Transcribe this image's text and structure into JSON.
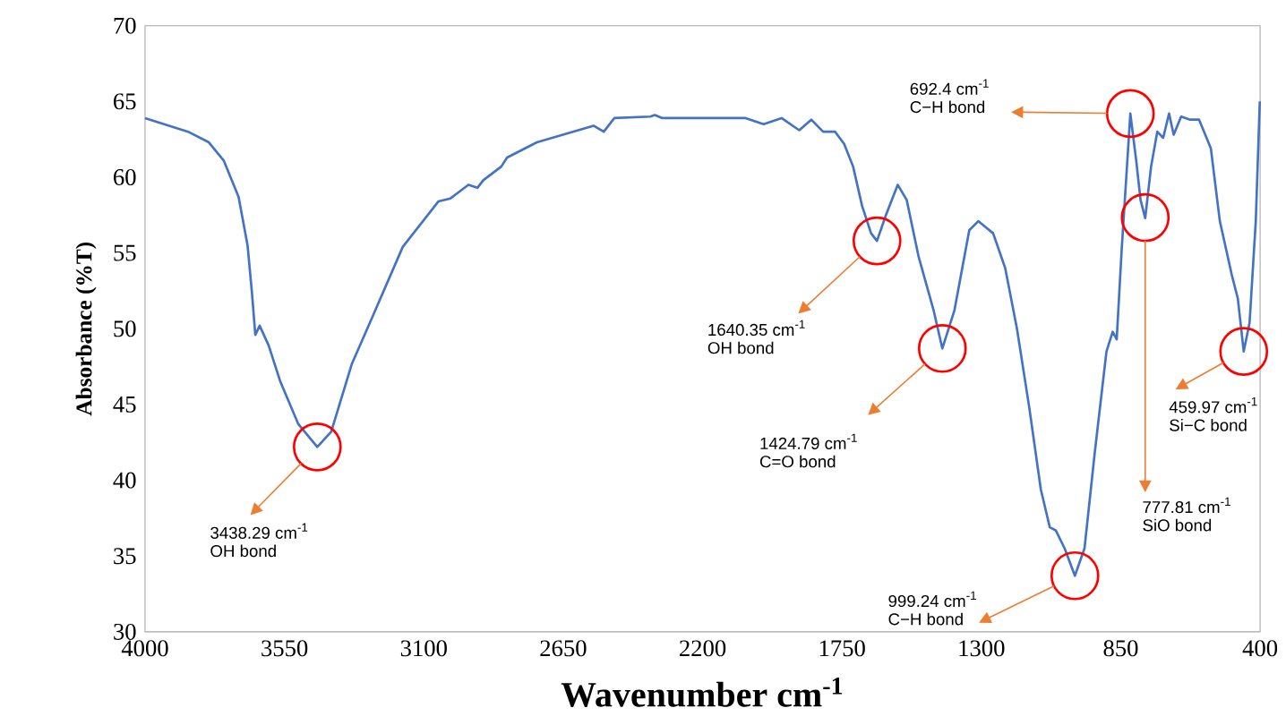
{
  "chart_data": {
    "type": "line",
    "xlabel": "Wavenumber cm$^{-1}$",
    "ylabel": "Absorbance (%T)",
    "xlim": [
      4000,
      400
    ],
    "ylim": [
      30,
      70
    ],
    "xticks": [
      4000,
      3550,
      3100,
      2650,
      2200,
      1750,
      1300,
      850,
      400
    ],
    "yticks": [
      30,
      35,
      40,
      45,
      50,
      55,
      60,
      65,
      70
    ],
    "series": [
      {
        "color": "#4472c4",
        "x": [
          4000,
          3861,
          3794,
          3746,
          3698,
          3669,
          3655,
          3644,
          3630,
          3601,
          3563,
          3505,
          3444,
          3399,
          3332,
          3274,
          3168,
          3053,
          3014,
          2956,
          2927,
          2908,
          2850,
          2831,
          2735,
          2552,
          2519,
          2485,
          2369,
          2354,
          2330,
          2061,
          2003,
          1945,
          1888,
          1849,
          1811,
          1772,
          1743,
          1714,
          1685,
          1656,
          1637,
          1608,
          1570,
          1541,
          1503,
          1454,
          1426,
          1387,
          1339,
          1310,
          1262,
          1223,
          1185,
          1146,
          1108,
          1079,
          1060,
          1031,
          998,
          967,
          934,
          896,
          876,
          863,
          847,
          819,
          800,
          786,
          771,
          752,
          732,
          713,
          694,
          679,
          655,
          626,
          597,
          559,
          530,
          492,
          472,
          453,
          434,
          414,
          401
        ],
        "values": [
          63.9,
          63.0,
          62.3,
          61.1,
          58.7,
          55.5,
          52.4,
          49.6,
          50.2,
          48.9,
          46.5,
          43.7,
          42.2,
          43.2,
          47.7,
          50.4,
          55.4,
          58.4,
          58.6,
          59.5,
          59.3,
          59.8,
          60.7,
          61.3,
          62.3,
          63.4,
          63.0,
          63.9,
          64.0,
          64.1,
          63.9,
          63.9,
          63.5,
          63.9,
          63.1,
          63.8,
          63.0,
          63.0,
          62.2,
          60.7,
          58.1,
          56.3,
          55.8,
          57.5,
          59.5,
          58.5,
          54.8,
          51.2,
          48.7,
          51.2,
          56.5,
          57.1,
          56.3,
          54.0,
          50.0,
          44.9,
          39.4,
          36.9,
          36.7,
          35.5,
          33.7,
          35.5,
          41.8,
          48.5,
          49.8,
          49.3,
          55.2,
          64.2,
          61.1,
          58.5,
          57.3,
          60.7,
          63.0,
          62.6,
          64.2,
          62.8,
          64.0,
          63.8,
          63.8,
          61.9,
          57.1,
          53.6,
          52.0,
          48.5,
          50.4,
          57.1,
          65.0
        ]
      }
    ],
    "marker": "none",
    "line_style": "solid",
    "annotations": [
      "3438.29 cm$^{-1}$",
      "OH bond",
      "1640.35 cm$^{-1}$",
      "OH bond",
      "1424.79 cm$^{-1}$",
      "C=O bond",
      "999.24 cm$^{-1}$",
      "C−H bond",
      "692.4 cm$^{-1}$",
      "C−H bond",
      {
        "text": "777.81 cm$^{-1}$",
        "x": 771,
        "y": 55.8
      },
      "SiO bond",
      "459.97 cm$^{-1}$",
      "Si−C bond"
    ]
  }
}
